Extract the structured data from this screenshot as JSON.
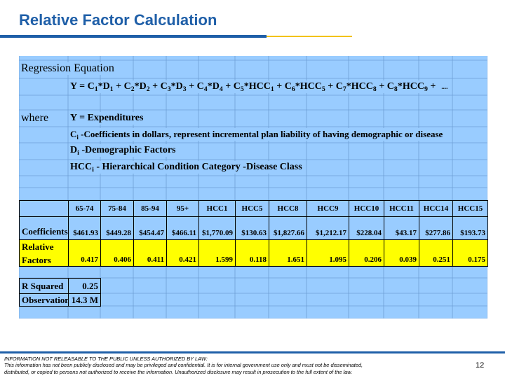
{
  "header": {
    "title": "Relative Factor Calculation"
  },
  "sheet": {
    "heading": "Regression Equation",
    "equation": {
      "parts": [
        {
          "text": "Y = C",
          "sub": "1"
        },
        {
          "text": "*D",
          "sub": "1"
        },
        {
          "text": " + C",
          "sub": "2"
        },
        {
          "text": "*D",
          "sub": "2"
        },
        {
          "text": " + C",
          "sub": "3"
        },
        {
          "text": "*D",
          "sub": "3"
        },
        {
          "text": " + C",
          "sub": "4"
        },
        {
          "text": "*D",
          "sub": "4"
        },
        {
          "text": " + C",
          "sub": "5"
        },
        {
          "text": "*HCC",
          "sub": "1"
        },
        {
          "text": " + C",
          "sub": "6"
        },
        {
          "text": "*HCC",
          "sub": "5"
        },
        {
          "text": " + C",
          "sub": "7"
        },
        {
          "text": "*HCC",
          "sub": "8"
        },
        {
          "text": " + C",
          "sub": "8"
        },
        {
          "text": "*HCC",
          "sub": "9"
        },
        {
          "text": " +"
        }
      ],
      "ellipsis": "...."
    },
    "where": "where",
    "definitions": [
      {
        "parts": [
          {
            "text": "Y = Expenditures"
          }
        ]
      },
      {
        "parts": [
          {
            "text": "C",
            "sub": "i"
          },
          {
            "text": " -Coefficients in dollars, represent incremental plan liability of having demographic or disease"
          }
        ]
      },
      {
        "parts": [
          {
            "text": "D",
            "sub": "i"
          },
          {
            "text": " -Demographic Factors"
          }
        ]
      },
      {
        "parts": [
          {
            "text": "HCC",
            "sub": "i"
          },
          {
            "text": " - Hierarchical Condition Category -Disease Class"
          }
        ]
      }
    ],
    "table": {
      "columns": [
        "65-74",
        "75-84",
        "85-94",
        "95+",
        "HCC1",
        "HCC5",
        "HCC8",
        "HCC9",
        "HCC10",
        "HCC11",
        "HCC14",
        "HCC15"
      ],
      "rows": [
        {
          "label": "Coefficients",
          "values": [
            "$461.93",
            "$449.28",
            "$454.47",
            "$466.11",
            "$1,770.09",
            "$130.63",
            "$1,827.66",
            "$1,212.17",
            "$228.04",
            "$43.17",
            "$277.86",
            "$193.73"
          ]
        },
        {
          "label": "Relative Factors",
          "values": [
            "0.417",
            "0.406",
            "0.411",
            "0.421",
            "1.599",
            "0.118",
            "1.651",
            "1.095",
            "0.206",
            "0.039",
            "0.251",
            "0.175"
          ]
        }
      ]
    },
    "stats": [
      {
        "label": "R Squared",
        "value": "0.25"
      },
      {
        "label": "Observation",
        "value": "14.3 M"
      }
    ]
  },
  "footer": {
    "lines": [
      "INFORMATION NOT RELEASABLE TO THE PUBLIC UNLESS AUTHORIZED BY LAW:",
      "This information has not been publicly disclosed and may be privileged and confidential.  It is for internal government use only and must not be disseminated,",
      "distributed, or copied to persons not authorized to receive the information.  Unauthorized disclosure may result in prosecution to the full extent of the law."
    ],
    "page": "12"
  }
}
